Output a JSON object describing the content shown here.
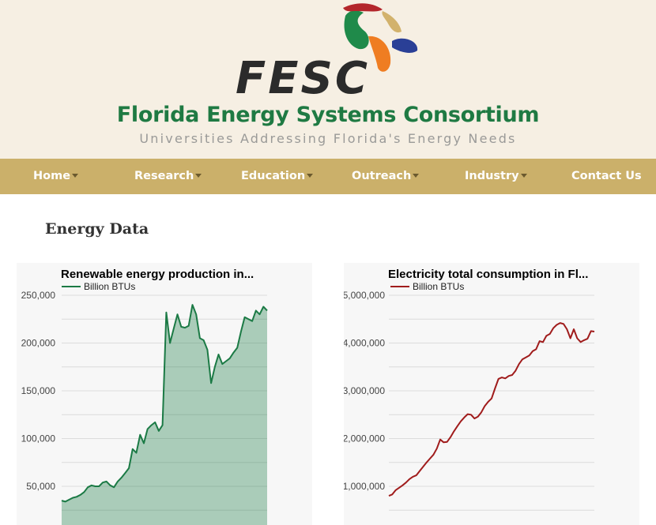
{
  "header": {
    "logo_text": "FESC",
    "title": "Florida Energy Systems Consortium",
    "tagline": "Universities Addressing Florida's Energy Needs",
    "colors": {
      "title": "#1f7a43",
      "background": "#f6efe3"
    }
  },
  "nav": {
    "background": "#cbb06a",
    "items": [
      {
        "label": "Home",
        "has_dropdown": true
      },
      {
        "label": "Research",
        "has_dropdown": true
      },
      {
        "label": "Education",
        "has_dropdown": true
      },
      {
        "label": "Outreach",
        "has_dropdown": true
      },
      {
        "label": "Industry",
        "has_dropdown": true
      },
      {
        "label": "Contact Us",
        "has_dropdown": false
      }
    ]
  },
  "main": {
    "heading": "Energy Data"
  },
  "chart_data": [
    {
      "type": "area",
      "title": "Renewable energy production in...",
      "legend": {
        "position": "top",
        "entries": [
          "Billion BTUs"
        ]
      },
      "series": [
        {
          "name": "Billion BTUs",
          "color": "#1b7a45",
          "values": [
            35000,
            34000,
            36000,
            38000,
            39000,
            41000,
            44000,
            49000,
            51000,
            50000,
            50000,
            54000,
            55000,
            51000,
            49000,
            55000,
            59000,
            64000,
            69000,
            89000,
            85000,
            104000,
            95000,
            110000,
            114000,
            117000,
            108000,
            114000,
            232000,
            200000,
            215000,
            230000,
            217000,
            216000,
            218000,
            240000,
            230000,
            205000,
            203000,
            193000,
            158000,
            175000,
            188000,
            178000,
            181000,
            184000,
            190000,
            195000,
            212000,
            227000,
            225000,
            223000,
            234000,
            230000,
            238000,
            234000
          ]
        }
      ],
      "ytick_labels": [
        "50,000",
        "100,000",
        "150,000",
        "200,000",
        "250,000"
      ],
      "ylim_visible": [
        0,
        250000
      ],
      "grid": true
    },
    {
      "type": "line",
      "title": "Electricity total consumption in Fl...",
      "legend": {
        "position": "top",
        "entries": [
          "Billion BTUs"
        ]
      },
      "series": [
        {
          "name": "Billion BTUs",
          "color": "#a01c1c",
          "values": [
            800000,
            830000,
            920000,
            970000,
            1020000,
            1080000,
            1150000,
            1200000,
            1230000,
            1320000,
            1410000,
            1500000,
            1580000,
            1660000,
            1790000,
            1980000,
            1920000,
            1930000,
            2030000,
            2150000,
            2260000,
            2360000,
            2440000,
            2510000,
            2500000,
            2420000,
            2460000,
            2550000,
            2680000,
            2770000,
            2840000,
            3050000,
            3250000,
            3280000,
            3260000,
            3310000,
            3330000,
            3420000,
            3560000,
            3660000,
            3700000,
            3740000,
            3830000,
            3870000,
            4040000,
            4020000,
            4150000,
            4190000,
            4310000,
            4380000,
            4420000,
            4400000,
            4290000,
            4100000,
            4290000,
            4100000,
            4020000,
            4060000,
            4090000,
            4250000,
            4240000
          ]
        }
      ],
      "ytick_labels": [
        "1,000,000",
        "2,000,000",
        "3,000,000",
        "4,000,000",
        "5,000,000"
      ],
      "ylim_visible": [
        700000,
        5000000
      ],
      "grid": true
    }
  ]
}
